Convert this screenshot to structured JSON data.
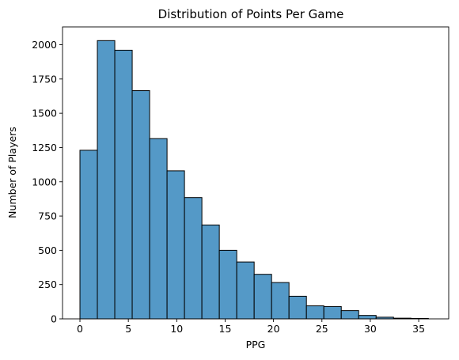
{
  "chart_data": {
    "type": "bar",
    "title": "Distribution of Points Per Game",
    "xlabel": "PPG",
    "ylabel": "Number of Players",
    "xlim": [
      -1.8,
      38.1
    ],
    "ylim": [
      0,
      2130
    ],
    "xticks": [
      0,
      5,
      10,
      15,
      20,
      25,
      30,
      35
    ],
    "yticks": [
      0,
      250,
      500,
      750,
      1000,
      1250,
      1500,
      1750,
      2000
    ],
    "bins": [
      {
        "x0": 0.0,
        "x1": 1.8,
        "count": 1230
      },
      {
        "x0": 1.8,
        "x1": 3.6,
        "count": 2030
      },
      {
        "x0": 3.6,
        "x1": 5.4,
        "count": 1960
      },
      {
        "x0": 5.4,
        "x1": 7.2,
        "count": 1665
      },
      {
        "x0": 7.2,
        "x1": 9.0,
        "count": 1315
      },
      {
        "x0": 9.0,
        "x1": 10.8,
        "count": 1080
      },
      {
        "x0": 10.8,
        "x1": 12.6,
        "count": 885
      },
      {
        "x0": 12.6,
        "x1": 14.4,
        "count": 685
      },
      {
        "x0": 14.4,
        "x1": 16.2,
        "count": 500
      },
      {
        "x0": 16.2,
        "x1": 18.0,
        "count": 415
      },
      {
        "x0": 18.0,
        "x1": 19.8,
        "count": 325
      },
      {
        "x0": 19.8,
        "x1": 21.6,
        "count": 265
      },
      {
        "x0": 21.6,
        "x1": 23.4,
        "count": 165
      },
      {
        "x0": 23.4,
        "x1": 25.2,
        "count": 95
      },
      {
        "x0": 25.2,
        "x1": 27.0,
        "count": 90
      },
      {
        "x0": 27.0,
        "x1": 28.8,
        "count": 60
      },
      {
        "x0": 28.8,
        "x1": 30.6,
        "count": 25
      },
      {
        "x0": 30.6,
        "x1": 32.4,
        "count": 12
      },
      {
        "x0": 32.4,
        "x1": 34.2,
        "count": 5
      },
      {
        "x0": 34.2,
        "x1": 36.0,
        "count": 3
      }
    ],
    "grid": false,
    "colors": {
      "bar_fill": "#5499c7",
      "bar_edge": "#000000",
      "axis": "#000000"
    }
  }
}
